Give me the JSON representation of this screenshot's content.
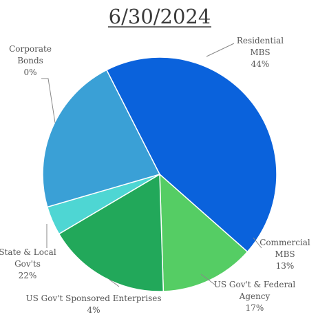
{
  "chart_data": {
    "type": "pie",
    "title": "6/30/2024",
    "slices": [
      {
        "name": "Residential MBS",
        "label_lines": [
          "Residential",
          "MBS"
        ],
        "value": 44,
        "value_label": "44%",
        "color": "#0a62dc"
      },
      {
        "name": "Commercial MBS",
        "label_lines": [
          "Commercial",
          "MBS"
        ],
        "value": 13,
        "value_label": "13%",
        "color": "#55cd64"
      },
      {
        "name": "US Gov't & Federal Agency",
        "label_lines": [
          "US Gov't & Federal",
          "Agency"
        ],
        "value": 17,
        "value_label": "17%",
        "color": "#22a85a"
      },
      {
        "name": "US Gov't Sponsored Enterprises",
        "label_lines": [
          "US Gov't Sponsored Enterprises"
        ],
        "value": 4,
        "value_label": "4%",
        "color": "#4ed6d3"
      },
      {
        "name": "State & Local Gov'ts",
        "label_lines": [
          "State & Local",
          "Gov'ts"
        ],
        "value": 22,
        "value_label": "22%",
        "color": "#3aa0d6"
      },
      {
        "name": "Corporate Bonds",
        "label_lines": [
          "Corporate",
          "Bonds"
        ],
        "value": 0,
        "value_label": "0%",
        "color": "#1e4fa8"
      }
    ]
  }
}
